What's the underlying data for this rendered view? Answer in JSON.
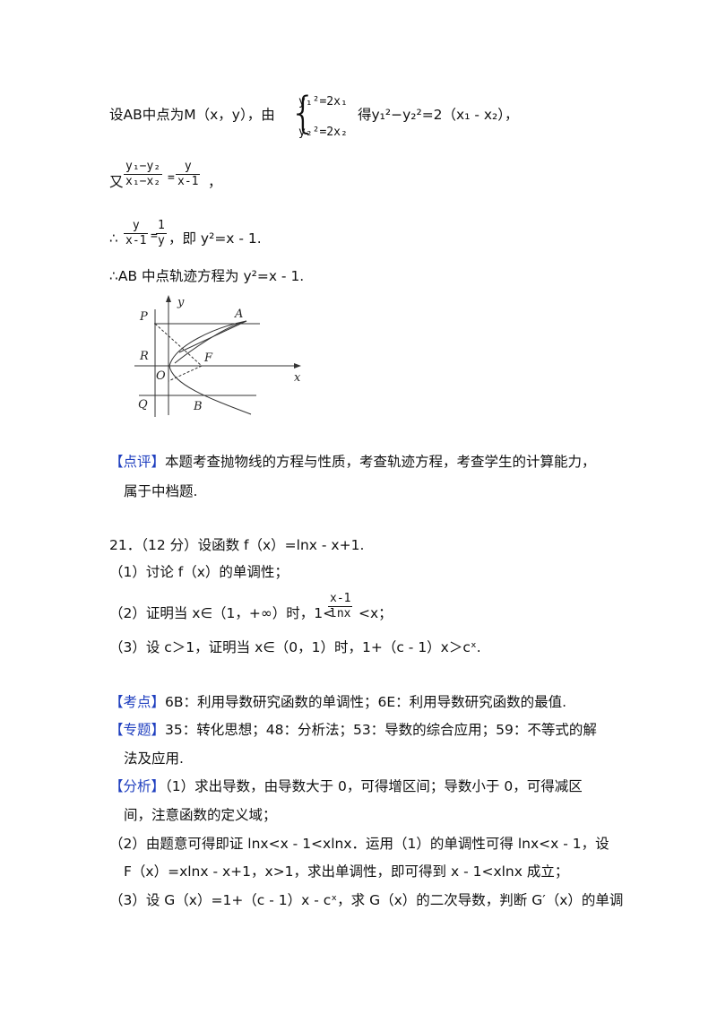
{
  "top": {
    "line1_prefix": "设AB中点为M（x，y），由",
    "eq1": "y₁²=2x₁",
    "eq2": "y₂²=2x₂",
    "line1_suffix": "得y₁²−y₂²=2（x₁ - x₂），",
    "line2_prefix": "又",
    "frac_a_num": "y₁−y₂",
    "frac_a_den": "x₁−x₂",
    "frac_b_num": "y",
    "frac_b_den": "x-1",
    "line2_suffix": "，",
    "line3_prefix": "∴",
    "frac_c_num": "y",
    "frac_c_den": "x-1",
    "frac_d_num": "1",
    "frac_d_den": "y",
    "line3_suffix": "，即 y²=x - 1.",
    "line4": "∴AB 中点轨迹方程为 y²=x - 1."
  },
  "figure": {
    "labels": {
      "P": "P",
      "R": "R",
      "O": "O",
      "Q": "Q",
      "A": "A",
      "F": "F",
      "B": "B",
      "x": "x",
      "y": "y"
    }
  },
  "review": {
    "tag": "【点评】",
    "line1": "本题考查抛物线的方程与性质，考查轨迹方程，考查学生的计算能力，",
    "line2": "属于中档题."
  },
  "problem": {
    "title": "21．（12 分）设函数 f（x）=lnx - x+1.",
    "q1": "（1）讨论 f（x）的单调性；",
    "q2_prefix": "（2）证明当 x∈（1，+∞）时，1<",
    "q2_frac_num": "x-1",
    "q2_frac_den": "lnx",
    "q2_suffix": "<x；",
    "q3": "（3）设 c＞1，证明当 x∈（0，1）时，1+（c - 1）x＞cˣ."
  },
  "analysis": {
    "kaodian_tag": "【考点】",
    "kaodian": "6B：利用导数研究函数的单调性；6E：利用导数研究函数的最值.",
    "zhuanti_tag": "【专题】",
    "zhuanti_line1": "35：转化思想；48：分析法；53：导数的综合应用；59：不等式的解",
    "zhuanti_line2": "法及应用.",
    "fenxi_tag": "【分析】",
    "fenxi_line1": "（1）求出导数，由导数大于 0，可得增区间；导数小于 0，可得减区",
    "fenxi_line2": "间，注意函数的定义域；",
    "fenxi_line3": "（2）由题意可得即证 lnx<x - 1<xlnx．运用（1）的单调性可得 lnx<x - 1，设",
    "fenxi_line4": "F（x）=xlnx - x+1，x>1，求出单调性，即可得到 x - 1<xlnx 成立；",
    "fenxi_line5": "（3）设 G（x）=1+（c - 1）x - cˣ，求 G（x）的二次导数，判断 G′（x）的单调"
  }
}
